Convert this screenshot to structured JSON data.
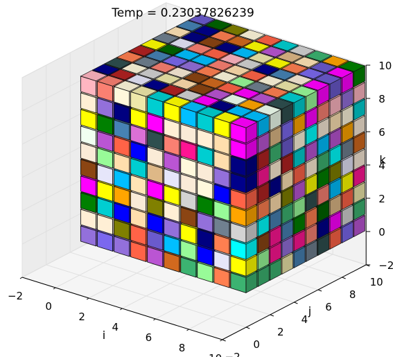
{
  "chart_data": {
    "type": "3d-bar",
    "title": "Temp = 0.23037826239",
    "xlabel": "i",
    "ylabel": "j",
    "zlabel": "k",
    "xlim": [
      -2,
      10
    ],
    "ylim": [
      -2,
      10
    ],
    "zlim": [
      -2,
      10
    ],
    "xticks": [
      "−2",
      "0",
      "2",
      "4",
      "6",
      "8",
      "10"
    ],
    "yticks": [
      "−2",
      "0",
      "2",
      "4",
      "6",
      "8",
      "10"
    ],
    "zticks": [
      "−2",
      "0",
      "2",
      "4",
      "6",
      "8",
      "10"
    ],
    "grid": "on",
    "voxels": {
      "i_range": [
        0,
        9
      ],
      "j_range": [
        0,
        9
      ],
      "k_range": [
        0,
        9
      ],
      "palette": [
        "#ff1493",
        "#00ffff",
        "#4682b4",
        "#ffdead",
        "#b22222",
        "#ffff00",
        "#808000",
        "#ff6347",
        "#00bfff",
        "#9370db",
        "#2f4f4f",
        "#008000",
        "#ffe4b5",
        "#d3d3d3",
        "#0000ff",
        "#fa8072",
        "#00ced1",
        "#ffefd5",
        "#ba55d3",
        "#f0fff0",
        "#8b4513",
        "#ff7f50",
        "#00008b",
        "#faebd7",
        "#da70d6",
        "#fff8dc",
        "#ff00ff",
        "#eee8aa",
        "#000080",
        "#3cb371",
        "#e6e6fa",
        "#6a5acd",
        "#d2691e",
        "#ffa500",
        "#deb887",
        "#98fb98",
        "#7b68ee",
        "#ffb6c1",
        "#708090",
        "#006400"
      ]
    }
  }
}
